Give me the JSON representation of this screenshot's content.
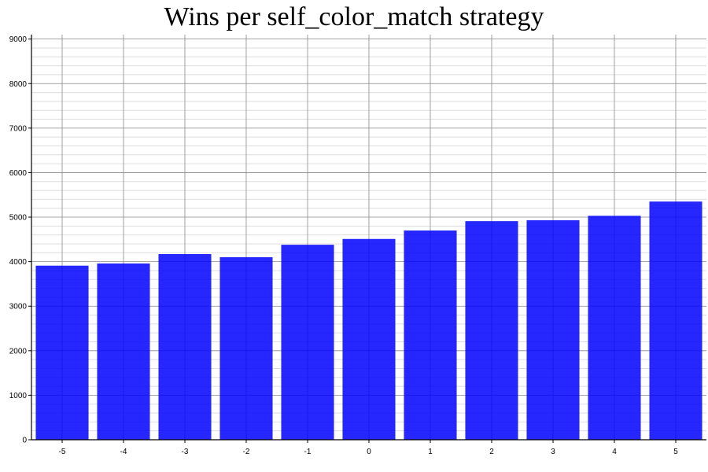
{
  "chart_data": {
    "type": "bar",
    "title": "Wins per self_color_match strategy",
    "xlabel": "",
    "ylabel": "",
    "categories": [
      "-5",
      "-4",
      "-3",
      "-2",
      "-1",
      "0",
      "1",
      "2",
      "3",
      "4",
      "5"
    ],
    "values": [
      3910,
      3960,
      4170,
      4100,
      4380,
      4510,
      4700,
      4910,
      4930,
      5030,
      5350
    ],
    "ylim": [
      0,
      9100
    ],
    "yticks": [
      0,
      1000,
      2000,
      3000,
      4000,
      5000,
      6000,
      7000,
      8000,
      9000
    ],
    "minor_tick_step": 200,
    "grid": true,
    "colors": {
      "bar": "#0000ff",
      "major_grid": "#888888",
      "minor_grid": "#dddddd",
      "axis": "#000000"
    }
  }
}
